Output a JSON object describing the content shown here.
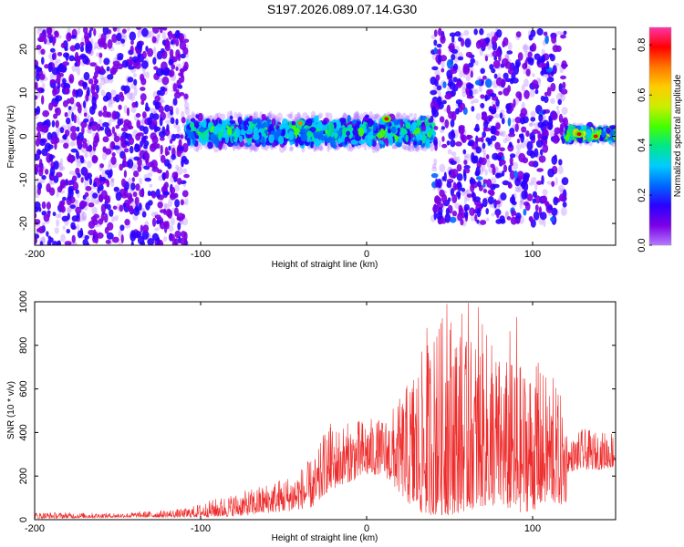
{
  "figure_title": "S197.2026.089.07.14.G30",
  "colors": {
    "snr_line": "#ee2a2a",
    "axis": "#000000",
    "background": "#ffffff"
  },
  "colormap": [
    "#b57bff",
    "#7b00e6",
    "#2b00ff",
    "#0066ff",
    "#00ccff",
    "#00e68a",
    "#44ff00",
    "#ccee00",
    "#ffcc00",
    "#ff7700",
    "#ff0000",
    "#ff33aa"
  ],
  "chart_data": [
    {
      "type": "heatmap",
      "name": "spectrogram",
      "xlabel": "Height of straight line (km)",
      "ylabel": "Frequency (Hz)",
      "xlim": [
        -200,
        150
      ],
      "ylim": [
        -25,
        25
      ],
      "xticks": [
        -200,
        -100,
        0,
        100
      ],
      "xtick_labels": [
        "-200",
        "-100",
        "0",
        "100"
      ],
      "yticks": [
        -20,
        -10,
        0,
        10,
        20
      ],
      "ytick_labels": [
        "-20",
        "-10",
        "0",
        "10",
        "20"
      ],
      "colorbar": {
        "label": "Normalized spectral amplitude",
        "range": [
          0,
          0.87
        ],
        "ticks": [
          0.0,
          0.2,
          0.4,
          0.6,
          0.8
        ],
        "tick_labels": [
          "0.0",
          "0.2",
          "0.4",
          "0.6",
          "0.8"
        ]
      },
      "regions": [
        {
          "x": [
            -200,
            -108
          ],
          "freq_spread_hz": 25,
          "center_hz": 0,
          "amplitude": 0.12,
          "density": 0.9,
          "note": "broadband noise"
        },
        {
          "x": [
            -108,
            40
          ],
          "freq_spread_hz": 4,
          "center_hz": 1,
          "amplitude": 0.35,
          "density": 1.0,
          "note": "signal band"
        },
        {
          "x": [
            40,
            120
          ],
          "freq_spread_hz": 22,
          "center_hz": 2,
          "amplitude": 0.14,
          "density": 0.75,
          "note": "scattered noise"
        },
        {
          "x": [
            120,
            150
          ],
          "freq_spread_hz": 2,
          "center_hz": 0.5,
          "amplitude": 0.5,
          "density": 1.0,
          "note": "signal band"
        }
      ],
      "peaks": [
        {
          "x": 12,
          "freq": 4,
          "amplitude": 0.8
        },
        {
          "x": 128,
          "freq": 0.5,
          "amplitude": 0.82
        },
        {
          "x": 138,
          "freq": 0,
          "amplitude": 0.8
        },
        {
          "x": -40,
          "freq": 3,
          "amplitude": 0.7
        }
      ]
    },
    {
      "type": "line",
      "name": "snr",
      "xlabel": "Height of straight line (km)",
      "ylabel": "SNR (10 * v/v)",
      "xlim": [
        -200,
        150
      ],
      "ylim": [
        0,
        1000
      ],
      "xticks": [
        -200,
        -100,
        0,
        100
      ],
      "xtick_labels": [
        "-200",
        "-100",
        "0",
        "100"
      ],
      "yticks": [
        0,
        200,
        400,
        600,
        800,
        1000
      ],
      "ytick_labels": [
        "0",
        "200",
        "400",
        "600",
        "800",
        "1000"
      ],
      "envelope": {
        "x": [
          -200,
          -150,
          -110,
          -90,
          -70,
          -60,
          -45,
          -30,
          -25,
          -15,
          0,
          10,
          20,
          30,
          40,
          50,
          60,
          70,
          80,
          90,
          100,
          110,
          120,
          121,
          130,
          140,
          150
        ],
        "low": [
          5,
          10,
          10,
          12,
          20,
          30,
          40,
          60,
          120,
          160,
          200,
          210,
          120,
          30,
          20,
          20,
          40,
          60,
          60,
          30,
          40,
          80,
          60,
          220,
          230,
          230,
          240
        ],
        "high": [
          35,
          30,
          50,
          100,
          140,
          170,
          210,
          300,
          420,
          440,
          470,
          460,
          560,
          720,
          880,
          990,
          820,
          900,
          760,
          720,
          720,
          660,
          540,
          350,
          420,
          400,
          420
        ]
      },
      "spikes": [
        {
          "x": 48,
          "y": 990
        },
        {
          "x": 61,
          "y": 995
        },
        {
          "x": 67,
          "y": 975
        },
        {
          "x": 57,
          "y": 945
        },
        {
          "x": 90,
          "y": 930
        },
        {
          "x": 36,
          "y": 880
        },
        {
          "x": 86,
          "y": 865
        },
        {
          "x": 42,
          "y": 840
        },
        {
          "x": 75,
          "y": 800
        },
        {
          "x": 53,
          "y": 785
        },
        {
          "x": 103,
          "y": 720
        },
        {
          "x": -22,
          "y": 440
        },
        {
          "x": 28,
          "y": 640
        },
        {
          "x": 112,
          "y": 650
        }
      ]
    }
  ]
}
